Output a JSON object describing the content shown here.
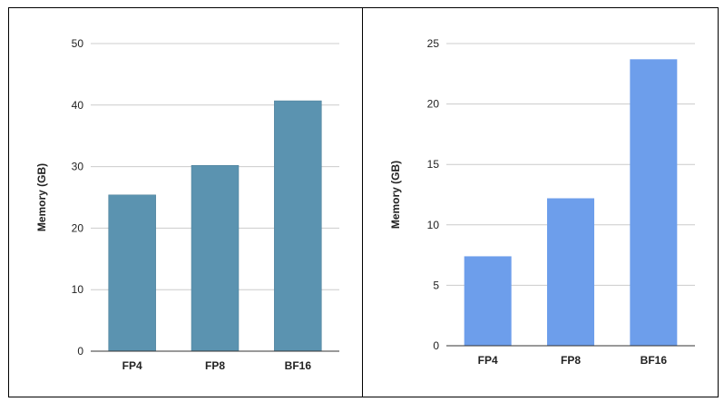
{
  "chart_data": [
    {
      "type": "bar",
      "categories": [
        "FP4",
        "FP8",
        "BF16"
      ],
      "values": [
        25.4,
        30.2,
        40.7
      ],
      "title": "",
      "xlabel": "",
      "ylabel": "Memory (GB)",
      "ylim": [
        0,
        50
      ],
      "yticks": [
        0,
        10,
        20,
        30,
        40,
        50
      ],
      "grid": true,
      "color": "#5b93b0"
    },
    {
      "type": "bar",
      "categories": [
        "FP4",
        "FP8",
        "BF16"
      ],
      "values": [
        7.4,
        12.2,
        23.7
      ],
      "title": "",
      "xlabel": "",
      "ylabel": "Memory (GB)",
      "ylim": [
        0,
        25
      ],
      "yticks": [
        0,
        5,
        10,
        15,
        20,
        25
      ],
      "grid": true,
      "color": "#6d9eeb"
    }
  ]
}
